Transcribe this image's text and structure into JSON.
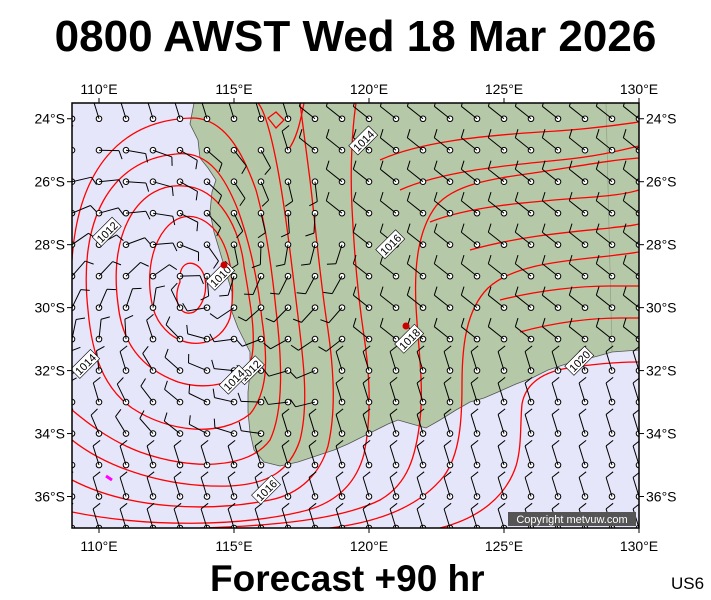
{
  "title": "0800 AWST Wed 18 Mar 2026",
  "footer": "Forecast +90 hr",
  "code": "US6",
  "copyright": "Copyright metvuw.com",
  "colors": {
    "ocean": "#e6e6fa",
    "land": "#b5c9a8",
    "isobar": "#ff0000",
    "barb": "#000000",
    "low_marker": "#ff00ff"
  },
  "axes": {
    "lon_labels": [
      "110°E",
      "115°E",
      "120°E",
      "125°E",
      "130°E"
    ],
    "lat_labels": [
      "24°S",
      "26°S",
      "28°S",
      "30°S",
      "32°S",
      "34°S",
      "36°S"
    ]
  },
  "isobar_labels": [
    {
      "text": "1010",
      "lon": 114.5,
      "lat": -29.0
    },
    {
      "text": "1012",
      "lon": 110.3,
      "lat": -27.6
    },
    {
      "text": "1012",
      "lon": 115.6,
      "lat": -32.0
    },
    {
      "text": "1014",
      "lon": 115.0,
      "lat": -32.3
    },
    {
      "text": "1014",
      "lon": 109.5,
      "lat": -31.8
    },
    {
      "text": "1016",
      "lon": 120.8,
      "lat": -28.0
    },
    {
      "text": "1016",
      "lon": 116.2,
      "lat": -35.8
    },
    {
      "text": "1018",
      "lon": 121.5,
      "lat": -31.0
    },
    {
      "text": "1020",
      "lon": 127.8,
      "lat": -31.7
    },
    {
      "text": "1014",
      "lon": 119.8,
      "lat": -24.7
    }
  ]
}
